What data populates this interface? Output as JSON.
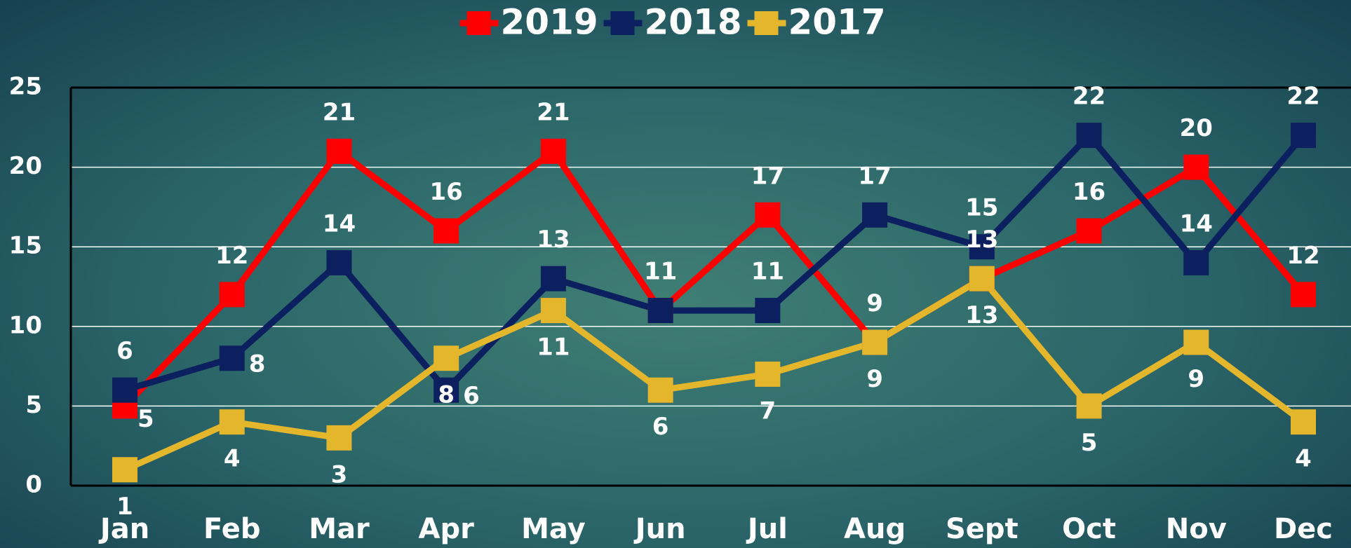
{
  "chart_data": {
    "type": "line",
    "categories": [
      "Jan",
      "Feb",
      "Mar",
      "Apr",
      "May",
      "Jun",
      "Jul",
      "Aug",
      "Sept",
      "Oct",
      "Nov",
      "Dec"
    ],
    "series": [
      {
        "name": "2019",
        "color": "#ff0000",
        "values": [
          5,
          12,
          21,
          16,
          21,
          11,
          17,
          9,
          13,
          16,
          20,
          12
        ]
      },
      {
        "name": "2018",
        "color": "#0c1f5e",
        "values": [
          6,
          8,
          14,
          6,
          13,
          11,
          11,
          17,
          15,
          22,
          14,
          22
        ]
      },
      {
        "name": "2017",
        "color": "#e4b62c",
        "values": [
          1,
          4,
          3,
          8,
          11,
          6,
          7,
          9,
          13,
          5,
          9,
          4
        ]
      }
    ],
    "ylim": [
      0,
      25
    ],
    "yticks": [
      0,
      5,
      10,
      15,
      20,
      25
    ],
    "grid": true,
    "legend": "top"
  }
}
